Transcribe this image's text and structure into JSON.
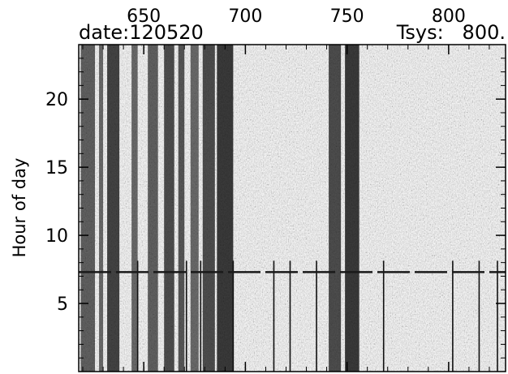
{
  "header": {
    "date_label": "date:120520",
    "tsys_label": "Tsys:   800."
  },
  "chart_data": {
    "type": "heatmap",
    "xlim": [
      618,
      828
    ],
    "ylim": [
      0,
      24
    ],
    "x_ticks": [
      {
        "value": 650,
        "label": "650"
      },
      {
        "value": 700,
        "label": "700"
      },
      {
        "value": 750,
        "label": "750"
      },
      {
        "value": 800,
        "label": "800"
      }
    ],
    "y_ticks": [
      {
        "value": 5,
        "label": "5"
      },
      {
        "value": 10,
        "label": "10"
      },
      {
        "value": 15,
        "label": "15"
      },
      {
        "value": 20,
        "label": "20"
      }
    ],
    "ylabel": "Hour of day",
    "xlabel": "",
    "colormap": "grayscale",
    "dark_bands": [
      {
        "x0": 619,
        "x1": 626,
        "level": 0.25
      },
      {
        "x0": 628,
        "x1": 630,
        "level": 0.3
      },
      {
        "x0": 632,
        "x1": 638,
        "level": 0.1
      },
      {
        "x0": 644,
        "x1": 647,
        "level": 0.3
      },
      {
        "x0": 652,
        "x1": 657,
        "level": 0.25
      },
      {
        "x0": 660,
        "x1": 665,
        "level": 0.15
      },
      {
        "x0": 667,
        "x1": 670,
        "level": 0.2
      },
      {
        "x0": 673,
        "x1": 677,
        "level": 0.3
      },
      {
        "x0": 679,
        "x1": 685,
        "level": 0.15
      },
      {
        "x0": 686,
        "x1": 694,
        "level": 0.05
      },
      {
        "x0": 741,
        "x1": 747,
        "level": 0.15
      },
      {
        "x0": 749,
        "x1": 756,
        "level": 0.05
      }
    ],
    "horizontal_line": {
      "y": 7.3
    },
    "vertical_lines": [
      647,
      671,
      678,
      694,
      714,
      722,
      735,
      768,
      802,
      815,
      824
    ]
  },
  "colors": {
    "background": "#ffffff",
    "axes": "#000000",
    "dark": "#1a1a1a",
    "light": "#e0e0e0"
  }
}
